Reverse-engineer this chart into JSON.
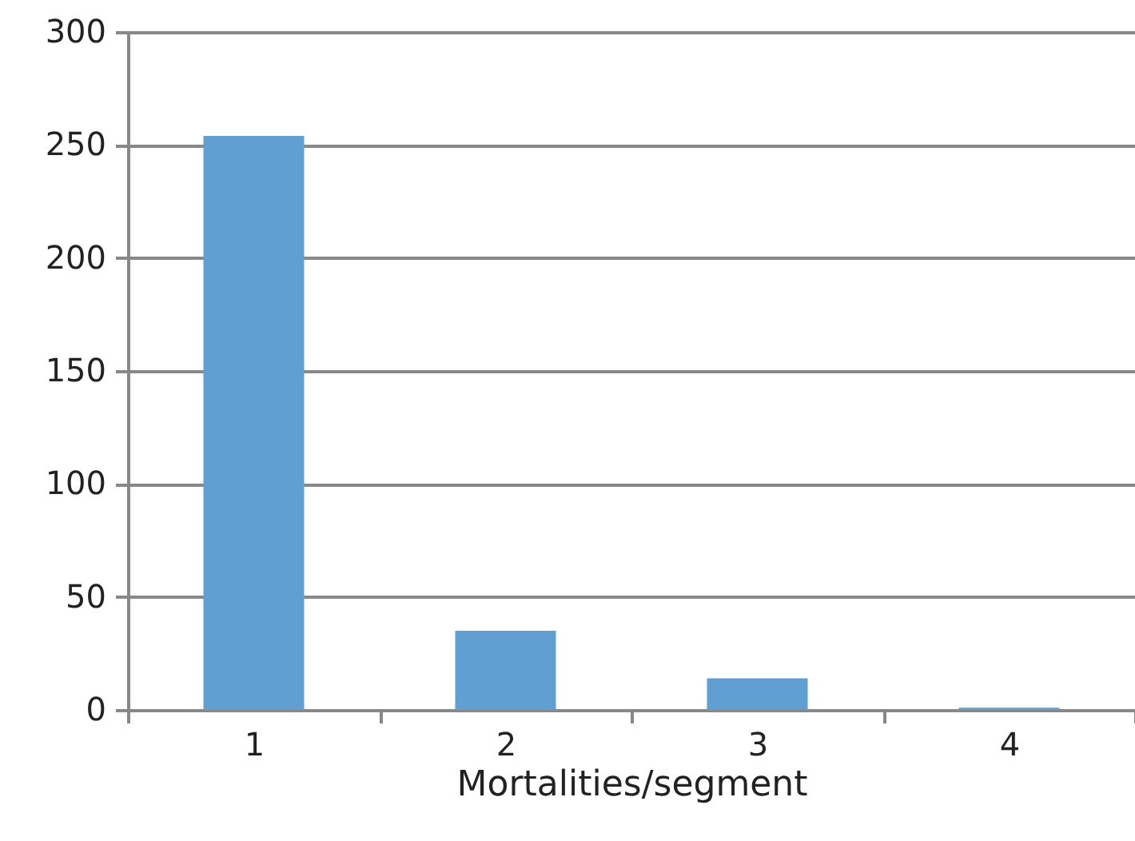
{
  "chart_data": {
    "type": "bar",
    "xlabel": "Mortalities/segment",
    "categories": [
      "1",
      "2",
      "3",
      "4"
    ],
    "values": [
      254,
      35,
      14,
      1
    ],
    "color": "#619fd3",
    "ylim": [
      0,
      300
    ],
    "yticks": [
      0,
      50,
      100,
      150,
      200,
      250,
      300
    ],
    "grid": "y"
  }
}
